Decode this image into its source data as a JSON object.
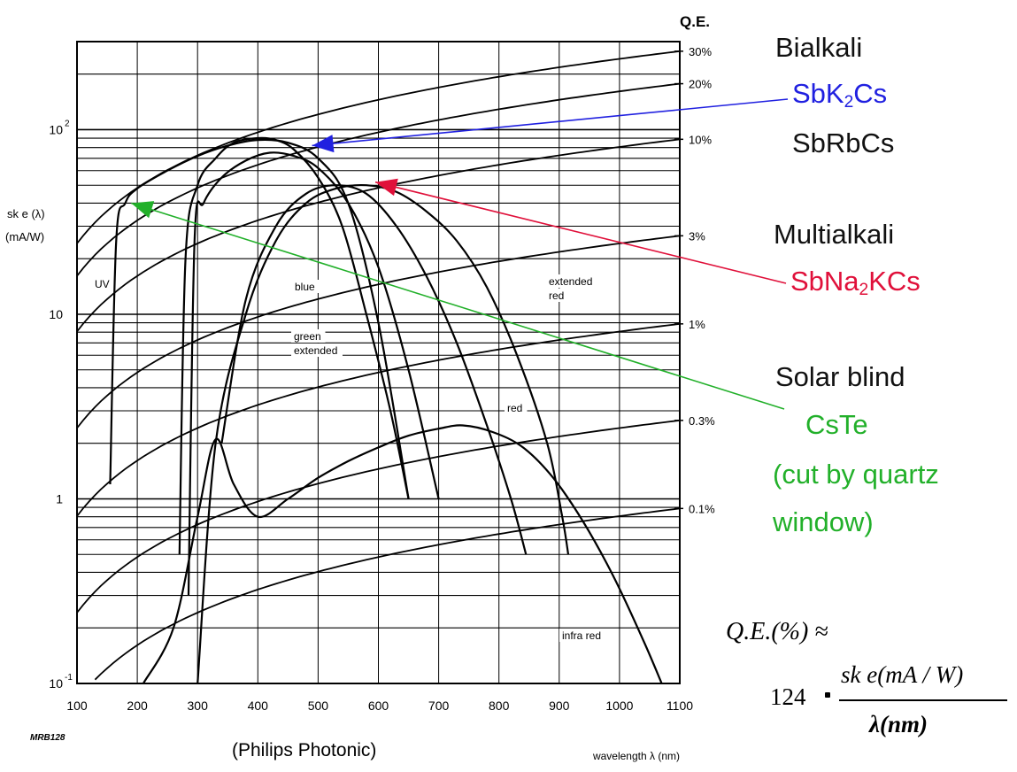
{
  "chart_data": {
    "type": "line",
    "xlabel": "wavelength  λ  (nm)",
    "ylabel_line1": "sk e (λ)",
    "ylabel_line2": "(mA/W)",
    "right_axis_title": "Q.E.",
    "xlim": [
      100,
      1100
    ],
    "ylim": [
      0.1,
      300
    ],
    "y_scale": "log",
    "x_ticks": [
      100,
      200,
      300,
      400,
      500,
      600,
      700,
      800,
      900,
      1000,
      1100
    ],
    "y_tick_labels": [
      {
        "value": 100,
        "base": "10",
        "exp": "2"
      },
      {
        "value": 10,
        "base": "10",
        "exp": ""
      },
      {
        "value": 1,
        "base": "1",
        "exp": ""
      },
      {
        "value": 0.1,
        "base": "10",
        "exp": "-1"
      }
    ],
    "qe_labels": [
      "30%",
      "20%",
      "10%",
      "3%",
      "1%",
      "0.3%",
      "0.1%"
    ],
    "qe_percent_values": [
      30,
      20,
      10,
      3,
      1,
      0.3,
      0.1
    ],
    "curve_labels": [
      "UV",
      "blue",
      "extended red",
      "green extended",
      "red",
      "infra red"
    ],
    "series": [
      {
        "label": "UV",
        "x": [
          155,
          165,
          180,
          200,
          250,
          300,
          350,
          400,
          450,
          500,
          550,
          600,
          650
        ],
        "y": [
          1.2,
          25,
          40,
          48,
          60,
          72,
          82,
          88,
          85,
          70,
          40,
          9,
          1
        ]
      },
      {
        "label": "blue",
        "x": [
          270,
          280,
          300,
          330,
          360,
          400,
          430,
          460,
          500,
          540,
          580,
          620,
          650
        ],
        "y": [
          0.5,
          20,
          50,
          70,
          85,
          90,
          88,
          78,
          55,
          30,
          10,
          3,
          1
        ]
      },
      {
        "label": "green extended",
        "x": [
          285,
          295,
          310,
          340,
          380,
          420,
          460,
          500,
          550,
          600,
          650,
          700
        ],
        "y": [
          0.3,
          25,
          40,
          55,
          68,
          75,
          72,
          62,
          40,
          18,
          5,
          1
        ]
      },
      {
        "label": "extended red",
        "x": [
          300,
          330,
          380,
          430,
          480,
          530,
          580,
          630,
          680,
          730,
          780,
          830,
          880,
          905,
          915
        ],
        "y": [
          0.1,
          2,
          10,
          25,
          40,
          48,
          50,
          46,
          36,
          25,
          14,
          6,
          2,
          0.8,
          0.5
        ]
      },
      {
        "label": "red",
        "x": [
          340,
          380,
          430,
          480,
          530,
          580,
          630,
          680,
          730,
          780,
          820,
          845
        ],
        "y": [
          2,
          12,
          30,
          45,
          50,
          45,
          30,
          16,
          7,
          2.5,
          1,
          0.5
        ]
      },
      {
        "label": "infra red",
        "x": [
          210,
          260,
          300,
          330,
          360,
          400,
          450,
          500,
          550,
          600,
          650,
          700,
          740,
          790,
          840,
          890,
          940,
          990,
          1040,
          1070
        ],
        "y": [
          0.1,
          0.2,
          0.8,
          2.1,
          1.2,
          0.8,
          1,
          1.3,
          1.6,
          1.9,
          2.2,
          2.4,
          2.5,
          2.3,
          1.9,
          1.3,
          0.75,
          0.38,
          0.17,
          0.1
        ]
      }
    ],
    "qe_lines_percent": [
      30,
      20,
      10,
      3,
      1,
      0.3,
      0.1
    ],
    "arrows": [
      {
        "color": "#2020e0",
        "to": [
          490,
          82
        ]
      },
      {
        "color": "#e0103a",
        "to": [
          595,
          52
        ]
      },
      {
        "color": "#22b02a",
        "to": [
          190,
          40
        ]
      }
    ]
  },
  "annotations": {
    "photocathodes": {
      "bialkali": "Bialkali",
      "sbk2cs_a": "SbK",
      "sbk2cs_sub": "2",
      "sbk2cs_b": "Cs",
      "sbrbcs": "SbRbCs",
      "multialkali": "Multialkali",
      "sbna2kcs_a": "SbNa",
      "sbna2kcs_sub": "2",
      "sbna2kcs_b": "KCs",
      "solar_blind": "Solar blind",
      "cste": "CsTe",
      "cut_line1": "(cut by quartz",
      "cut_line2": "window)"
    },
    "source": "(Philips Photonic)",
    "code": "MRB128"
  },
  "formula": {
    "lhs": "Q.E.(%) ≈",
    "factor": "124",
    "numerator": "sk e(mA / W)",
    "denominator": "λ(nm)"
  },
  "colors": {
    "blue": "#2020e0",
    "red": "#e0103a",
    "green": "#22b02a"
  }
}
